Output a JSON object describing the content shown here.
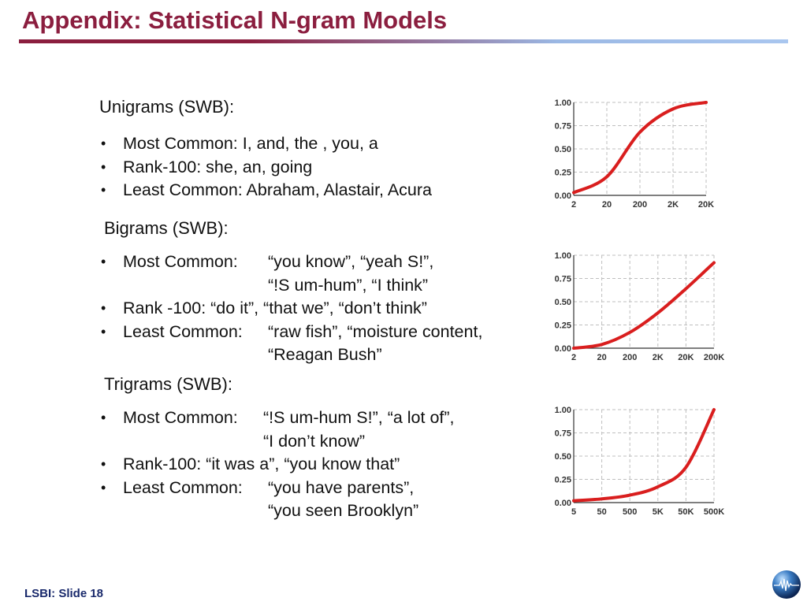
{
  "title": "Appendix: Statistical N-gram Models",
  "footer": "LSBI: Slide 18",
  "sections": [
    {
      "heading": "Unigrams (SWB):",
      "items": [
        {
          "label": "Most Common:",
          "text": " I, and, the , you, a",
          "cont": ""
        },
        {
          "label": "Rank-100:",
          "text": " she, an, going",
          "cont": ""
        },
        {
          "label": "Least Common:",
          "text": " Abraham, Alastair, Acura",
          "cont": ""
        }
      ]
    },
    {
      "heading": "Bigrams (SWB):",
      "items": [
        {
          "label": "Most Common:",
          "text": "“you know”, “yeah S!”,",
          "cont": "“!S um-hum”, “I think”"
        },
        {
          "label": "Rank -100:",
          "text": " “do it”, “that we”, “don’t think”",
          "cont": ""
        },
        {
          "label": "Least Common:",
          "text": "“raw fish”, “moisture content,",
          "cont": "“Reagan Bush”"
        }
      ]
    },
    {
      "heading": "Trigrams (SWB):",
      "items": [
        {
          "label": "Most Common:",
          "text": "“!S um-hum S!”, “a lot of”,",
          "cont": "“I don’t know”"
        },
        {
          "label": "Rank-100:",
          "text": " “it was a”, “you know that”",
          "cont": ""
        },
        {
          "label": "Least Common:",
          "text": "“you have parents”,",
          "cont": "“you seen Brooklyn”"
        }
      ]
    }
  ],
  "chart_data": [
    {
      "type": "line",
      "title": "",
      "xlabel": "",
      "ylabel": "",
      "x_ticks": [
        "2",
        "20",
        "200",
        "2K",
        "20K"
      ],
      "y_ticks": [
        "0.00",
        "0.25",
        "0.50",
        "0.75",
        "1.00"
      ],
      "ylim": [
        0,
        1
      ],
      "grid": true,
      "series": [
        {
          "x": [
            2,
            20,
            200,
            2000,
            20000
          ],
          "y": [
            0.03,
            0.2,
            0.68,
            0.93,
            1.0
          ]
        }
      ],
      "color": "#d91e1e"
    },
    {
      "type": "line",
      "title": "",
      "xlabel": "",
      "ylabel": "",
      "x_ticks": [
        "2",
        "20",
        "200",
        "2K",
        "20K",
        "200K"
      ],
      "y_ticks": [
        "0.00",
        "0.25",
        "0.50",
        "0.75",
        "1.00"
      ],
      "ylim": [
        0,
        1
      ],
      "grid": true,
      "series": [
        {
          "x": [
            2,
            20,
            200,
            2000,
            20000,
            200000
          ],
          "y": [
            0.0,
            0.04,
            0.17,
            0.38,
            0.64,
            0.92
          ]
        }
      ],
      "color": "#d91e1e"
    },
    {
      "type": "line",
      "title": "",
      "xlabel": "",
      "ylabel": "",
      "x_ticks": [
        "5",
        "50",
        "500",
        "5K",
        "50K",
        "500K"
      ],
      "y_ticks": [
        "0.00",
        "0.25",
        "0.50",
        "0.75",
        "1.00"
      ],
      "ylim": [
        0,
        1
      ],
      "grid": true,
      "series": [
        {
          "x": [
            5,
            50,
            500,
            5000,
            50000,
            500000
          ],
          "y": [
            0.02,
            0.04,
            0.08,
            0.17,
            0.38,
            1.0
          ]
        }
      ],
      "color": "#d91e1e"
    }
  ]
}
